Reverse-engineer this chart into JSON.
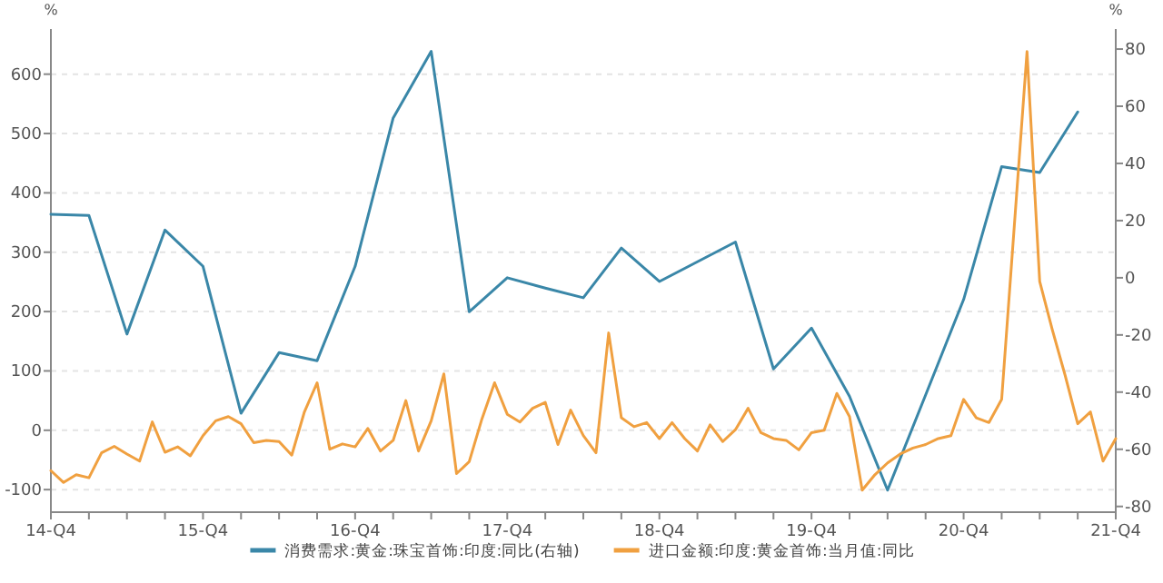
{
  "chart_data": {
    "type": "line",
    "ylabel": "%",
    "y2label": "%",
    "categories": [
      "14-Q4",
      null,
      null,
      null,
      null,
      null,
      null,
      null,
      null,
      null,
      null,
      null,
      "15-Q4",
      null,
      null,
      null,
      null,
      null,
      null,
      null,
      null,
      null,
      null,
      null,
      "16-Q4",
      null,
      null,
      null,
      null,
      null,
      null,
      null,
      null,
      null,
      null,
      null,
      "17-Q4",
      null,
      null,
      null,
      null,
      null,
      null,
      null,
      null,
      null,
      null,
      null,
      "18-Q4",
      null,
      null,
      null,
      null,
      null,
      null,
      null,
      null,
      null,
      null,
      null,
      "19-Q4",
      null,
      null,
      null,
      null,
      null,
      null,
      null,
      null,
      null,
      null,
      null,
      "20-Q4",
      null,
      null,
      null,
      null,
      null,
      null,
      null,
      null,
      null,
      null,
      null,
      "21-Q4"
    ],
    "ylim": [
      -138,
      676
    ],
    "yticks": [
      -100,
      0,
      100,
      200,
      300,
      400,
      500,
      600
    ],
    "y2lim": [
      -82,
      87
    ],
    "y2ticks": [
      -80,
      -60,
      -40,
      -20,
      0,
      20,
      40,
      60,
      80
    ],
    "grid": "y",
    "legend": "bottom",
    "marker": "none",
    "line_style": "solid",
    "series": [
      {
        "name": "消费需求:黄金:珠宝首饰:印度:同比(右轴)",
        "color": "#3a87a8",
        "axis": "y2",
        "values": [
          22.2,
          null,
          null,
          21.8,
          null,
          null,
          -19.7,
          null,
          null,
          16.7,
          null,
          null,
          4.0,
          null,
          null,
          -47.4,
          null,
          null,
          -26.2,
          null,
          null,
          -29.0,
          null,
          null,
          4.0,
          null,
          null,
          55.9,
          null,
          null,
          79.2,
          null,
          null,
          -11.9,
          null,
          null,
          0,
          null,
          null,
          -3.6,
          null,
          null,
          -7.0,
          null,
          null,
          10.4,
          null,
          null,
          -1.3,
          null,
          null,
          5.6,
          null,
          null,
          12.5,
          null,
          null,
          -31.9,
          null,
          null,
          -17.6,
          null,
          null,
          -41.5,
          null,
          null,
          -74.3,
          null,
          null,
          -41,
          null,
          null,
          -7.6,
          null,
          null,
          38.9,
          null,
          null,
          36.8,
          null,
          null,
          58.0,
          null,
          null,
          null
        ]
      },
      {
        "name": "进口金额:印度:黄金首饰:当月值:同比",
        "color": "#f0a040",
        "axis": "y",
        "values": [
          -68,
          -88,
          -75,
          -80,
          -38,
          -27,
          -40,
          -52,
          14,
          -37,
          -28,
          -43,
          -9,
          16,
          23,
          11,
          -21,
          -17,
          -19,
          -42,
          31,
          80,
          -32,
          -23,
          -28,
          3,
          -35,
          -17,
          50,
          -35,
          16,
          95,
          -73,
          -53,
          19,
          80,
          27,
          14,
          37,
          47,
          -24,
          34,
          -9,
          -38,
          164,
          21,
          6,
          13,
          -14,
          13,
          -14,
          -35,
          9,
          -19,
          1,
          37,
          -4,
          -14,
          -17,
          -33,
          -4,
          0,
          62,
          23,
          -101,
          -75,
          -55,
          -40,
          -30,
          -24,
          -14,
          -9,
          52,
          21,
          13,
          52,
          345,
          638,
          251,
          169,
          93,
          11,
          31,
          -52,
          -14
        ]
      }
    ]
  }
}
